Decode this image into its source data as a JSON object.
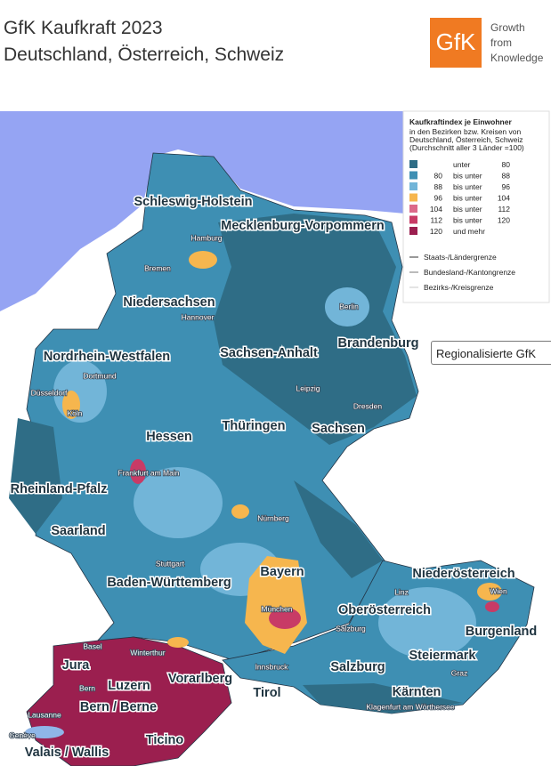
{
  "header": {
    "title_lines": [
      "GfK Kaufkraft 2023",
      "Deutschland, Österreich, Schweiz"
    ]
  },
  "logo": {
    "mark": "GfK",
    "tagline": [
      "Growth",
      "from",
      "Knowledge"
    ]
  },
  "legend": {
    "title": "Kaufkraftindex je Einwohner",
    "subtitle_lines": [
      "in den Bezirken bzw. Kreisen von",
      "Deutschland, Österreich, Schweiz",
      "(Durchschnitt aller 3 Länder =100)"
    ],
    "classes": [
      {
        "color": "#2f6d86",
        "label": "unter",
        "upper": "80"
      },
      {
        "color": "#3e8fb3",
        "lower": "80",
        "label": "bis unter",
        "upper": "88"
      },
      {
        "color": "#72b5d8",
        "lower": "88",
        "label": "bis unter",
        "upper": "96"
      },
      {
        "color": "#f6b64e",
        "lower": "96",
        "label": "bis unter",
        "upper": "104"
      },
      {
        "color": "#dc6a8a",
        "lower": "104",
        "label": "bis unter",
        "upper": "112"
      },
      {
        "color": "#c83b66",
        "lower": "112",
        "label": "bis unter",
        "upper": "120"
      },
      {
        "color": "#9b1f4f",
        "lower": "120",
        "label": "und mehr"
      }
    ],
    "borders": [
      "Staats-/Ländergrenze",
      "Bundesland-/Kantongrenze",
      "Bezirks-/Kreisgrenze"
    ]
  },
  "button": {
    "label": "Regionalisierte GfK"
  },
  "map": {
    "regions": [
      "Schleswig-Holstein",
      "Mecklenburg-Vorpommern",
      "Niedersachsen",
      "Brandenburg",
      "Nordrhein-Westfalen",
      "Sachsen-Anhalt",
      "Hessen",
      "Thüringen",
      "Sachsen",
      "Rheinland-Pfalz",
      "Saarland",
      "Bayern",
      "Baden-Württemberg",
      "Niederösterreich",
      "Oberösterreich",
      "Burgenland",
      "Steiermark",
      "Jura",
      "Luzern",
      "Vorarlberg",
      "Salzburg",
      "Tirol",
      "Kärnten",
      "Bern / Berne",
      "Ticino",
      "Valais / Wallis"
    ],
    "cities": [
      "Hamburg",
      "Bremen",
      "Hannover",
      "Berlin",
      "Dortmund",
      "Düsseldorf",
      "Köln",
      "Leipzig",
      "Dresden",
      "Frankfurt am Main",
      "Nürnberg",
      "Stuttgart",
      "München",
      "Linz",
      "Wien",
      "Salzburg",
      "Innsbruck",
      "Graz",
      "Basel",
      "Winterthur",
      "Bern",
      "Lausanne",
      "Genève",
      "Klagenfurt am Wörthersee"
    ]
  }
}
